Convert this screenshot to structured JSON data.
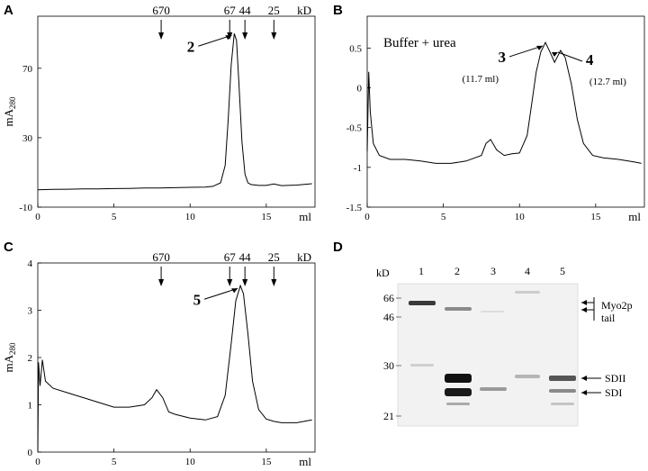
{
  "panels": {
    "A": {
      "letter": "A"
    },
    "B": {
      "letter": "B"
    },
    "C": {
      "letter": "C"
    },
    "D": {
      "letter": "D"
    }
  },
  "chart_data": [
    {
      "id": "A",
      "type": "line",
      "ylabel": "mA280",
      "xlabel": "ml",
      "x_ticks": [
        "0",
        "5",
        "10",
        "15"
      ],
      "y_ticks": [
        "-10",
        "30",
        "70"
      ],
      "xlim": [
        0,
        18.2
      ],
      "ylim": [
        -10,
        100
      ],
      "mw_label": "kD",
      "mw_markers": [
        {
          "label": "670",
          "x": 8.1
        },
        {
          "label": "67",
          "x": 12.6
        },
        {
          "label": "44",
          "x": 13.6
        },
        {
          "label": "25",
          "x": 15.5
        }
      ],
      "annotations": [
        {
          "label": "2",
          "x": 12.9,
          "y": 90
        }
      ],
      "series": [
        {
          "x": [
            0,
            1,
            2,
            3,
            4,
            5,
            6,
            7,
            8,
            9,
            10,
            11,
            11.5,
            12,
            12.3,
            12.5,
            12.7,
            12.9,
            13.05,
            13.2,
            13.4,
            13.6,
            13.8,
            14,
            14.5,
            15,
            15.5,
            16,
            17,
            18
          ],
          "y": [
            0,
            0.2,
            0.3,
            0.5,
            0.5,
            0.7,
            0.8,
            1,
            1,
            1.2,
            1.4,
            1.5,
            2,
            4,
            14,
            40,
            72,
            90,
            86,
            62,
            28,
            9,
            4,
            3,
            2.5,
            2.5,
            3.4,
            2.4,
            2.7,
            3.5
          ]
        }
      ]
    },
    {
      "id": "B",
      "type": "line",
      "xlabel": "ml",
      "x_ticks": [
        "0",
        "5",
        "10",
        "15"
      ],
      "y_ticks": [
        "0.5",
        "0",
        "-0.5",
        "-1",
        "-1.5"
      ],
      "xlim": [
        0,
        18.2
      ],
      "ylim": [
        -1.5,
        0.9
      ],
      "inset_title": "Buffer + urea",
      "annotations": [
        {
          "label": "3",
          "x": 11.7,
          "y": 0.55,
          "volume": "(11.7 ml)"
        },
        {
          "label": "4",
          "x": 12.7,
          "y": 0.47,
          "volume": "(12.7 ml)"
        }
      ],
      "series": [
        {
          "x": [
            0,
            0.1,
            0.2,
            0.4,
            0.8,
            1.5,
            2.5,
            3.5,
            4.5,
            5.5,
            6.5,
            7.5,
            7.8,
            8.1,
            8.5,
            9,
            9.5,
            10,
            10.5,
            10.8,
            11.1,
            11.4,
            11.7,
            12,
            12.3,
            12.7,
            13,
            13.4,
            13.8,
            14.2,
            14.8,
            15.5,
            16.5,
            17.5,
            18
          ],
          "y": [
            -0.8,
            0.2,
            -0.3,
            -0.7,
            -0.85,
            -0.9,
            -0.9,
            -0.92,
            -0.95,
            -0.95,
            -0.92,
            -0.85,
            -0.7,
            -0.65,
            -0.78,
            -0.85,
            -0.83,
            -0.82,
            -0.6,
            -0.2,
            0.2,
            0.45,
            0.57,
            0.45,
            0.32,
            0.47,
            0.38,
            0.05,
            -0.4,
            -0.7,
            -0.85,
            -0.88,
            -0.9,
            -0.93,
            -0.95
          ]
        }
      ]
    },
    {
      "id": "C",
      "type": "line",
      "ylabel": "mA280",
      "xlabel": "ml",
      "x_ticks": [
        "0",
        "5",
        "10",
        "15"
      ],
      "y_ticks": [
        "0",
        "1",
        "2",
        "3",
        "4"
      ],
      "xlim": [
        0,
        18.2
      ],
      "ylim": [
        0,
        4
      ],
      "mw_label": "kD",
      "mw_markers": [
        {
          "label": "670",
          "x": 8.1
        },
        {
          "label": "67",
          "x": 12.6
        },
        {
          "label": "44",
          "x": 13.6
        },
        {
          "label": "25",
          "x": 15.5
        }
      ],
      "annotations": [
        {
          "label": "5",
          "x": 13.3,
          "y": 3.5
        }
      ],
      "series": [
        {
          "x": [
            0,
            0.05,
            0.15,
            0.3,
            0.5,
            1,
            2,
            3,
            4,
            5,
            6,
            7,
            7.5,
            7.8,
            8.2,
            8.6,
            9,
            10,
            11,
            11.8,
            12.3,
            12.7,
            13,
            13.3,
            13.5,
            13.8,
            14.1,
            14.5,
            15,
            15.5,
            16,
            17,
            18
          ],
          "y": [
            0,
            1.9,
            1.4,
            1.95,
            1.5,
            1.35,
            1.25,
            1.15,
            1.05,
            0.95,
            0.95,
            1.0,
            1.15,
            1.32,
            1.15,
            0.85,
            0.8,
            0.72,
            0.68,
            0.75,
            1.2,
            2.3,
            3.2,
            3.52,
            3.35,
            2.5,
            1.5,
            0.9,
            0.7,
            0.65,
            0.62,
            0.62,
            0.68
          ]
        }
      ]
    }
  ],
  "gel": {
    "kd_label": "kD",
    "lanes": [
      "1",
      "2",
      "3",
      "4",
      "5"
    ],
    "markers": [
      "66",
      "46",
      "30",
      "21"
    ],
    "labels": {
      "myo": "Myo2p",
      "tail": "tail",
      "sdii": "SDII",
      "sdi": "SDI"
    }
  }
}
